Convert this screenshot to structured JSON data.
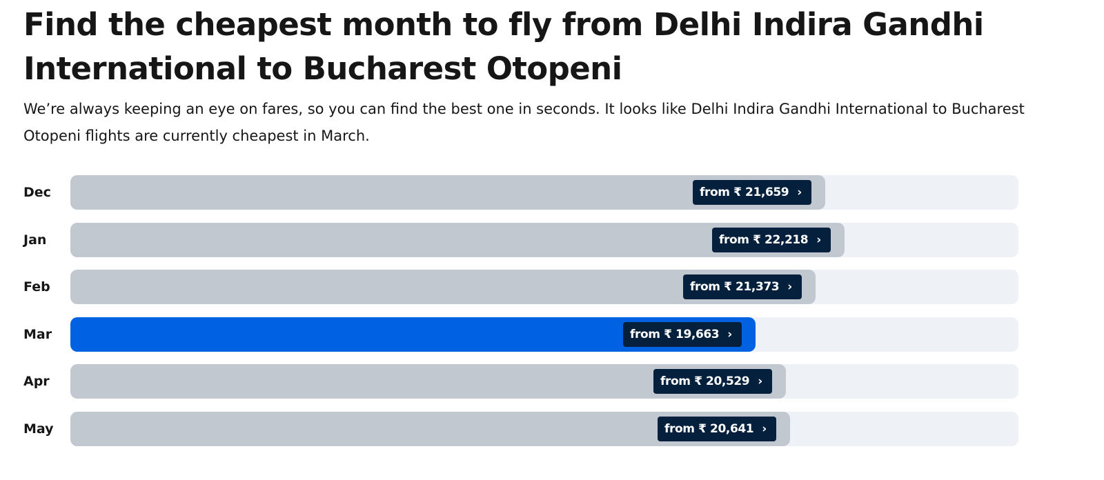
{
  "page": {
    "title": "Find the cheapest month to fly from Delhi Indira Gandhi International to Bucharest Otopeni",
    "subtitle": "We’re always keeping an eye on fares, so you can find the best one in seconds. It looks like Delhi Indira Gandhi International to Bucharest Otopeni flights are currently cheapest in March."
  },
  "colors": {
    "bar_default": "#c2c8d0",
    "bar_cheapest": "#0062e3",
    "track": "#eef1f6",
    "pill": "#05203c"
  },
  "icons": {
    "pill_arrow": "chevron-right-icon"
  },
  "chart_data": {
    "type": "bar",
    "orientation": "horizontal",
    "currency_symbol": "₹",
    "value_prefix": "from",
    "categories": [
      "Dec",
      "Jan",
      "Feb",
      "Mar",
      "Apr",
      "May"
    ],
    "values": [
      21659,
      22218,
      21373,
      19663,
      20529,
      20641
    ],
    "value_labels": [
      "from ₹ 21,659",
      "from ₹ 22,218",
      "from ₹ 21,373",
      "from ₹ 19,663",
      "from ₹ 20,529",
      "from ₹ 20,641"
    ],
    "highlighted_category": "Mar",
    "xlim": [
      0,
      27200
    ],
    "grid": false,
    "legend": "none"
  }
}
